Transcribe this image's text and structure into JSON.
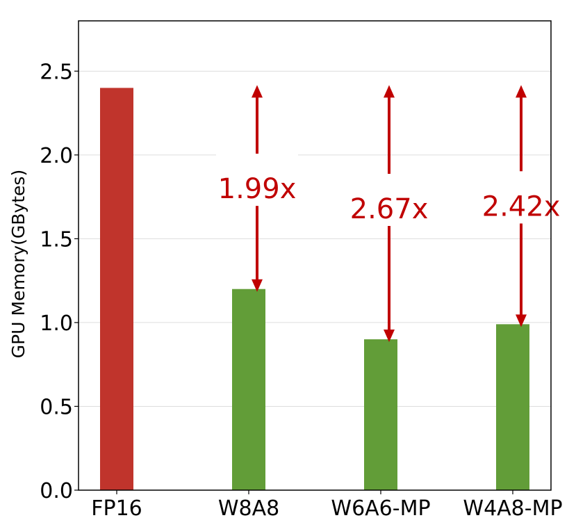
{
  "chart_data": {
    "type": "bar",
    "ylabel": "GPU Memory(GBytes)",
    "categories": [
      "FP16",
      "W8A8",
      "W6A6-MP",
      "W4A8-MP"
    ],
    "values": [
      2.4,
      1.2,
      0.9,
      0.99
    ],
    "colors": [
      "#c0342c",
      "#629d38",
      "#629d38",
      "#629d38"
    ],
    "ylim": [
      0,
      2.8
    ],
    "yticks": [
      0.0,
      0.5,
      1.0,
      1.5,
      2.0,
      2.5
    ],
    "ytick_labels": [
      "0.0",
      "0.5",
      "1.0",
      "1.5",
      "2.0",
      "2.5"
    ],
    "grid": "horizontal",
    "legend": "none",
    "annotations": [
      {
        "category": "W8A8",
        "label": "1.99x",
        "from": 2.4,
        "to": 1.2,
        "color": "#c00000"
      },
      {
        "category": "W6A6-MP",
        "label": "2.67x",
        "from": 2.4,
        "to": 0.9,
        "color": "#c00000"
      },
      {
        "category": "W4A8-MP",
        "label": "2.42x",
        "from": 2.4,
        "to": 0.99,
        "color": "#c00000"
      }
    ]
  }
}
